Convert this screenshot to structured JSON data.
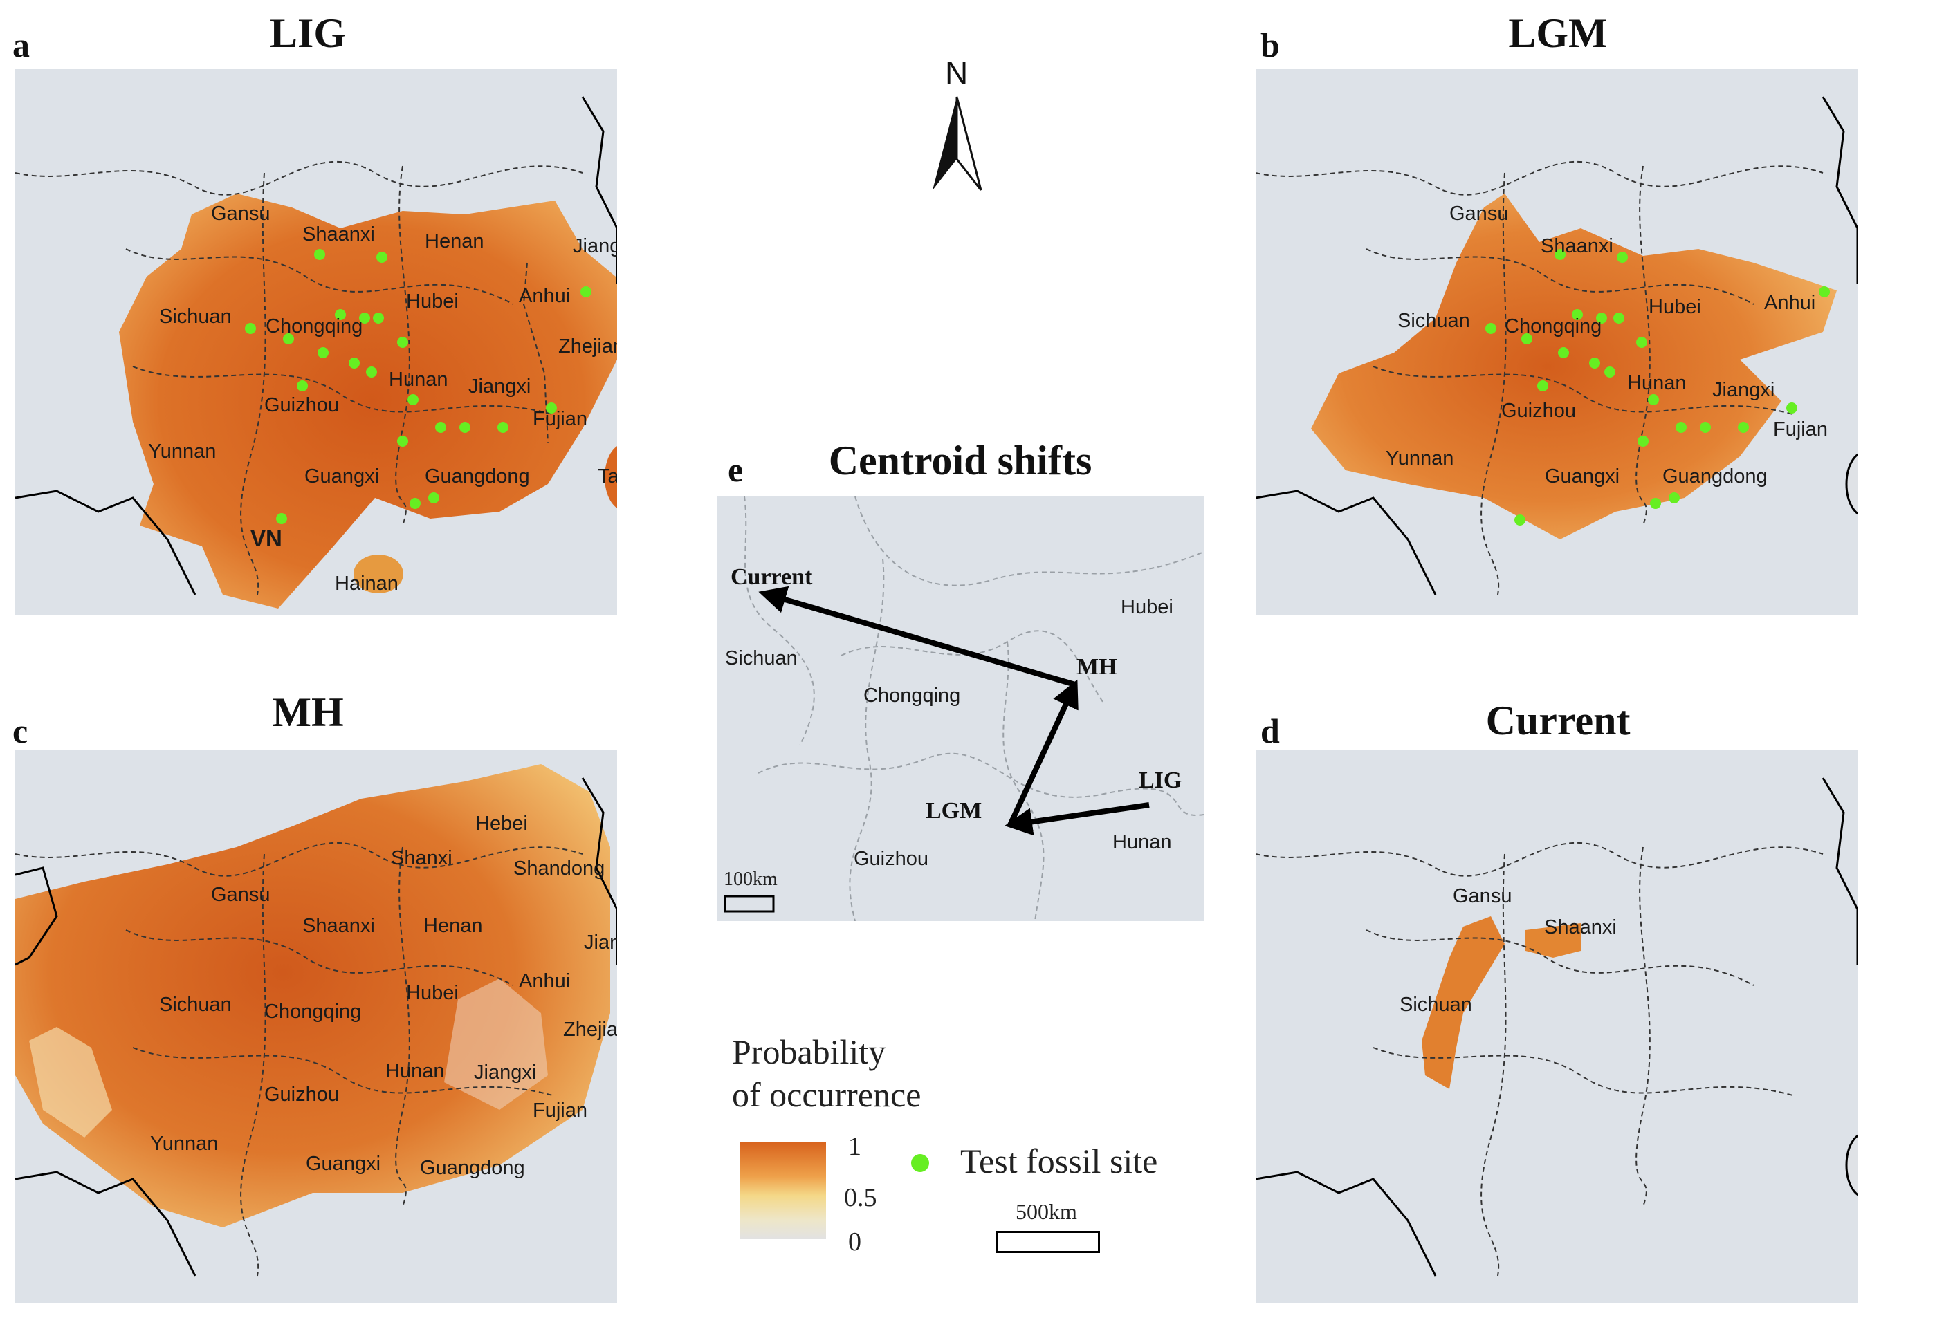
{
  "panels": {
    "a": {
      "letter": "a",
      "title": "LIG"
    },
    "b": {
      "letter": "b",
      "title": "LGM"
    },
    "c": {
      "letter": "c",
      "title": "MH"
    },
    "d": {
      "letter": "d",
      "title": "Current"
    },
    "e": {
      "letter": "e",
      "title": "Centroid shifts"
    }
  },
  "labels_a": [
    "Gansu",
    "Shaanxi",
    "Henan",
    "Jiangsu",
    "Sichuan",
    "Chongqing",
    "Hubei",
    "Anhui",
    "Zhejiang",
    "Hunan",
    "Jiangxi",
    "Guizhou",
    "Fujian",
    "Yunnan",
    "Guangxi",
    "Guangdong",
    "Taiwan",
    "VN",
    "Hainan"
  ],
  "labels_b": [
    "Gansu",
    "Shaanxi",
    "Hubei",
    "Anhui",
    "Sichuan",
    "Chongqing",
    "Hunan",
    "Jiangxi",
    "Guizhou",
    "Fujian",
    "Yunnan",
    "Guangxi",
    "Guangdong"
  ],
  "labels_c": [
    "Hebei",
    "Shanxi",
    "Shandong",
    "Gansu",
    "Shaanxi",
    "Henan",
    "Jiangsu",
    "Sichuan",
    "Chongqing",
    "Hubei",
    "Anhui",
    "Zhejiang",
    "Hunan",
    "Jiangxi",
    "Guizhou",
    "Fujian",
    "Yunnan",
    "Guangxi",
    "Guangdong"
  ],
  "labels_d": [
    "Gansu",
    "Shaanxi",
    "Sichuan"
  ],
  "centroid": {
    "provinces": [
      "Hubei",
      "Sichuan",
      "Chongqing",
      "Guizhou",
      "Hunan"
    ],
    "periods": [
      "Current",
      "MH",
      "LGM",
      "LIG"
    ],
    "scale_label": "100km"
  },
  "legend": {
    "title_line1": "Probability",
    "title_line2": "of occurrence",
    "tick_max": "1",
    "tick_mid": "0.5",
    "tick_min": "0",
    "fossil_label": "Test fossil site",
    "scale_label": "500km"
  },
  "north_label": "N",
  "colors": {
    "background_map": "#dde2e8",
    "high": "#d8641e",
    "mid": "#f4cf7a",
    "low": "#e2e2e2",
    "fossil": "#66ee22"
  }
}
